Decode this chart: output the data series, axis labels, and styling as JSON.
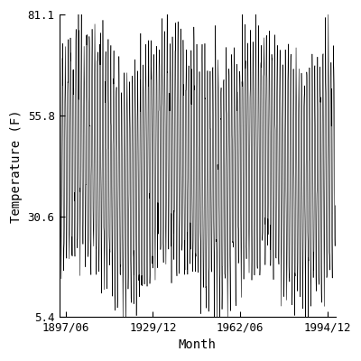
{
  "title": "",
  "xlabel": "Month",
  "ylabel": "Temperature (F)",
  "xlim_start_year": 1895,
  "xlim_start_month": 1,
  "xlim_end_year": 1997,
  "xlim_end_month": 12,
  "ylim": [
    5.4,
    81.1
  ],
  "yticks": [
    5.4,
    30.6,
    55.8,
    81.1
  ],
  "xtick_labels": [
    "1897/06",
    "1929/12",
    "1962/06",
    "1994/12"
  ],
  "xtick_years": [
    1897.458,
    1929.958,
    1962.458,
    1994.958
  ],
  "mean_temp": 43.25,
  "amplitude": 27.0,
  "noise_std": 4.5,
  "envelope_period": 33.0,
  "envelope_amplitude": 5.0,
  "line_color": "#000000",
  "line_width": 0.4,
  "background_color": "#ffffff",
  "font_family": "DejaVu Sans Mono",
  "figsize": [
    4.0,
    4.0
  ],
  "dpi": 100
}
